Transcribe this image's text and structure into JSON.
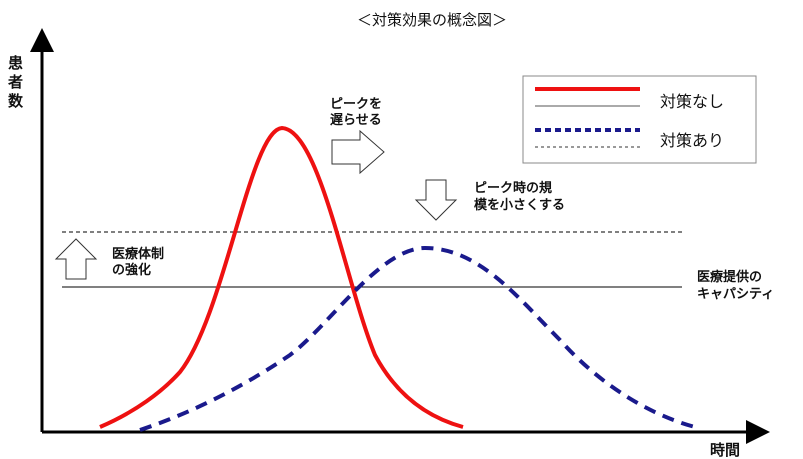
{
  "title": "＜対策効果の概念図＞",
  "y_axis_label": [
    "患",
    "者",
    "数"
  ],
  "x_axis_label": "時間",
  "legend": {
    "no_measures_label": "対策なし",
    "with_measures_label": "対策あり"
  },
  "annotations": {
    "delay_peak": [
      "ピークを",
      "遅らせる"
    ],
    "reduce_peak": [
      "ピーク時の規",
      "模を小さくする"
    ],
    "strengthen_care": [
      "医療体制",
      "の強化"
    ],
    "capacity": [
      "医療提供の",
      "キャパシティ"
    ]
  },
  "colors": {
    "no_measures": "#ee1111",
    "with_measures": "#1a1a8c",
    "axis": "#000000",
    "capacity_line": "#000000"
  }
}
